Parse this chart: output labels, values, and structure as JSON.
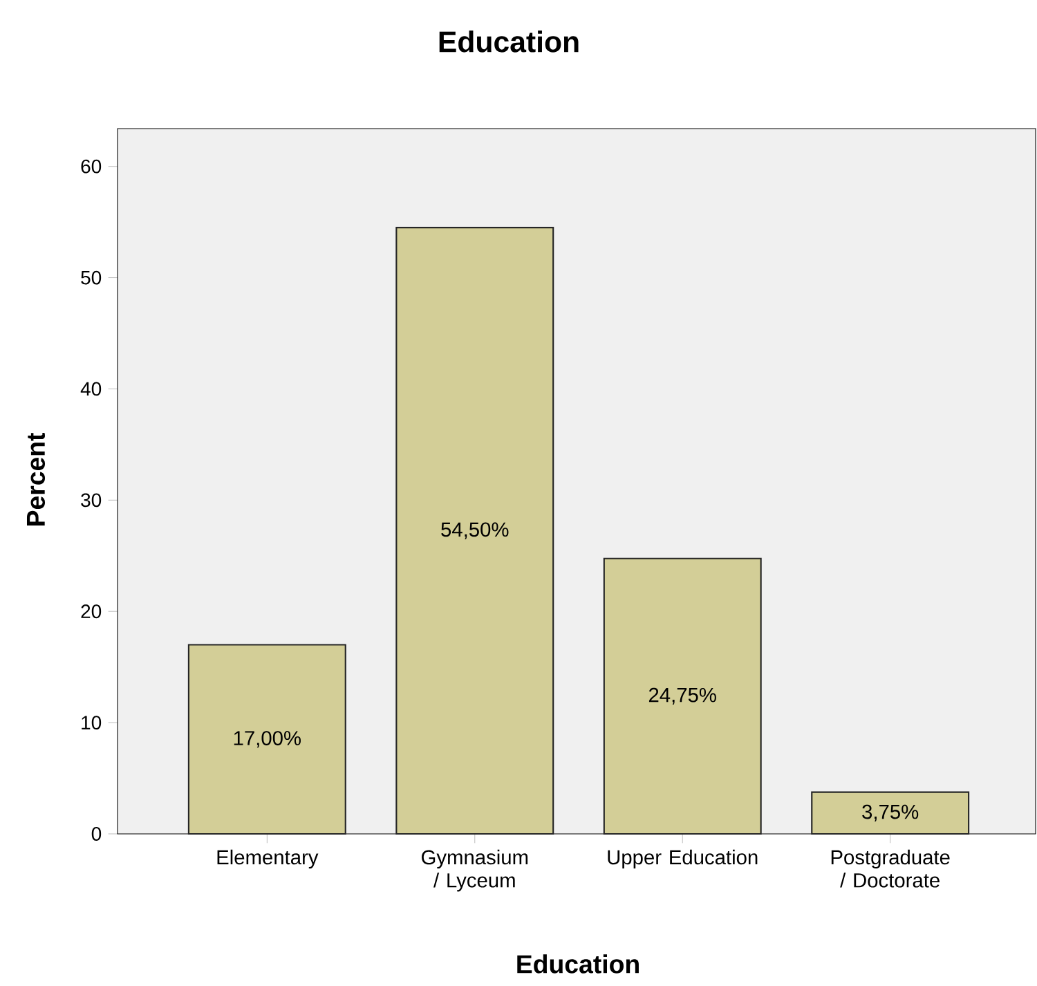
{
  "chart_data": {
    "type": "bar",
    "title": "Education",
    "xlabel": "Education",
    "ylabel": "Percent",
    "categories": [
      "Elementary",
      "Gymnasium / Lyceum",
      "Upper Education",
      "Postgraduate / Doctorate"
    ],
    "values": [
      17.0,
      54.5,
      24.75,
      3.75
    ],
    "value_labels": [
      "17,00%",
      "54,50%",
      "24,75%",
      "3,75%"
    ],
    "color": "#d3ce97",
    "ylim": [
      0,
      63.4
    ],
    "yticks": [
      0,
      10,
      20,
      30,
      40,
      50,
      60
    ],
    "grid": false
  }
}
